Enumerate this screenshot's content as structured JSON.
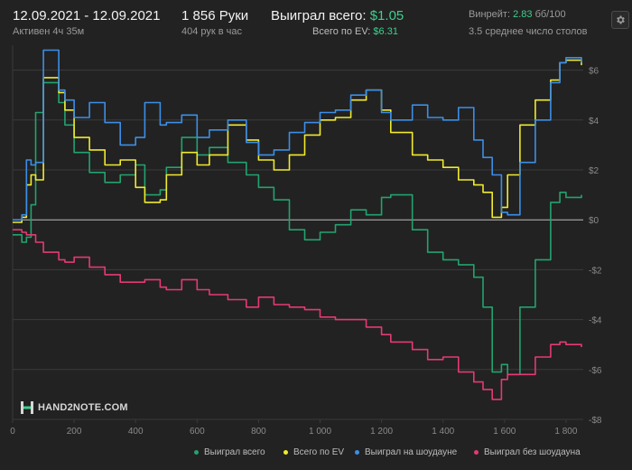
{
  "header": {
    "date_range": "12.09.2021 - 12.09.2021",
    "active": "Активен 4ч 35м",
    "hands": "1 856 Руки",
    "hands_per_hour": "404 рук в час",
    "won_total_label": "Выиграл всего:",
    "won_total_value": "$1.05",
    "ev_label": "Всего по EV:",
    "ev_value": "$6.31",
    "winrate_label": "Винрейт:",
    "winrate_value": "2.83",
    "winrate_unit": "бб/100",
    "avg_tables": "3.5 среднее число столов"
  },
  "settings_icon": "gear-icon",
  "logo": {
    "icon": "hand2note-logo-icon",
    "text": "HAND2NOTE.COM"
  },
  "colors": {
    "background": "#222222",
    "grid": "#3b3b3b",
    "zero_line": "#bdbdbd",
    "won_total": "#22a36f",
    "ev": "#f0ea2e",
    "showdown": "#3d8ee6",
    "non_showdown": "#e43a74",
    "accent": "#3ecf8e"
  },
  "chart_data": {
    "type": "line",
    "xlabel": "",
    "ylabel": "",
    "xlim": [
      0,
      1856
    ],
    "ylim": [
      -8,
      7
    ],
    "x_ticks": [
      0,
      200,
      400,
      600,
      800,
      1000,
      1200,
      1400,
      1600,
      1800
    ],
    "x_tick_labels": [
      "0",
      "200",
      "400",
      "600",
      "800",
      "1 000",
      "1 200",
      "1 400",
      "1 600",
      "1 800"
    ],
    "y_ticks": [
      6,
      4,
      2,
      0,
      -2,
      -4,
      -6,
      -8
    ],
    "y_tick_labels": [
      "$6",
      "$4",
      "$2",
      "$0",
      "-$2",
      "-$4",
      "-$6",
      "-$8"
    ],
    "grid": true,
    "legend_position": "bottom",
    "series": [
      {
        "name": "Выиграл всего",
        "color": "#22a36f",
        "x": [
          0,
          30,
          45,
          60,
          75,
          100,
          150,
          170,
          200,
          250,
          300,
          350,
          400,
          430,
          480,
          500,
          550,
          600,
          640,
          700,
          760,
          800,
          850,
          900,
          950,
          1000,
          1050,
          1100,
          1150,
          1200,
          1230,
          1300,
          1350,
          1400,
          1450,
          1500,
          1530,
          1560,
          1590,
          1610,
          1650,
          1700,
          1750,
          1780,
          1800,
          1850
        ],
        "y": [
          -0.6,
          -0.9,
          -0.7,
          0.6,
          4.3,
          5.5,
          4.7,
          3.8,
          2.7,
          1.9,
          1.5,
          1.8,
          2.2,
          1.0,
          1.2,
          2.1,
          3.3,
          2.6,
          2.9,
          2.3,
          1.8,
          1.3,
          0.8,
          -0.4,
          -0.8,
          -0.5,
          -0.2,
          0.4,
          0.2,
          0.9,
          1.0,
          -0.4,
          -1.3,
          -1.6,
          -1.8,
          -2.3,
          -3.5,
          -6.1,
          -5.8,
          -6.2,
          -3.5,
          -1.6,
          0.7,
          1.1,
          0.9,
          1.0
        ]
      },
      {
        "name": "Всего по EV",
        "color": "#f0ea2e",
        "x": [
          0,
          30,
          45,
          60,
          75,
          100,
          150,
          170,
          200,
          250,
          300,
          350,
          400,
          430,
          480,
          500,
          550,
          600,
          640,
          700,
          760,
          800,
          850,
          900,
          950,
          1000,
          1050,
          1100,
          1150,
          1200,
          1230,
          1300,
          1350,
          1400,
          1450,
          1500,
          1530,
          1560,
          1590,
          1610,
          1650,
          1700,
          1750,
          1780,
          1800,
          1850
        ],
        "y": [
          -0.1,
          0.1,
          1.4,
          1.8,
          1.6,
          5.7,
          5.1,
          4.4,
          3.3,
          2.8,
          2.2,
          2.4,
          1.3,
          0.7,
          0.8,
          1.8,
          2.7,
          2.2,
          2.6,
          3.8,
          3.2,
          2.4,
          2.0,
          2.6,
          3.4,
          4.0,
          4.1,
          4.8,
          5.2,
          4.4,
          3.5,
          2.6,
          2.4,
          2.1,
          1.6,
          1.4,
          1.1,
          0.1,
          0.5,
          1.8,
          3.8,
          4.8,
          5.6,
          6.3,
          6.4,
          6.2
        ]
      },
      {
        "name": "Выиграл на шоудауне",
        "color": "#3d8ee6",
        "x": [
          0,
          30,
          45,
          60,
          75,
          100,
          150,
          170,
          200,
          250,
          300,
          350,
          400,
          430,
          480,
          500,
          550,
          600,
          640,
          700,
          760,
          800,
          850,
          900,
          950,
          1000,
          1050,
          1100,
          1150,
          1200,
          1230,
          1300,
          1350,
          1400,
          1450,
          1500,
          1530,
          1560,
          1590,
          1610,
          1650,
          1700,
          1750,
          1780,
          1800,
          1850
        ],
        "y": [
          0.0,
          0.2,
          2.4,
          2.2,
          2.3,
          6.8,
          5.2,
          4.8,
          4.1,
          4.7,
          3.9,
          3.0,
          3.3,
          4.7,
          3.8,
          3.9,
          4.2,
          3.3,
          3.6,
          4.0,
          3.1,
          2.6,
          2.8,
          3.5,
          3.9,
          4.3,
          4.4,
          5.0,
          5.2,
          4.3,
          4.0,
          4.6,
          4.1,
          4.0,
          4.5,
          3.2,
          2.5,
          1.8,
          0.3,
          0.2,
          2.3,
          4.0,
          5.5,
          6.3,
          6.5,
          6.3
        ]
      },
      {
        "name": "Выиграл без шоудауна",
        "color": "#e43a74",
        "x": [
          0,
          30,
          45,
          60,
          75,
          100,
          150,
          170,
          200,
          250,
          300,
          350,
          400,
          430,
          480,
          500,
          550,
          600,
          640,
          700,
          760,
          800,
          850,
          900,
          950,
          1000,
          1050,
          1100,
          1150,
          1200,
          1230,
          1300,
          1350,
          1400,
          1450,
          1500,
          1530,
          1560,
          1590,
          1610,
          1650,
          1700,
          1750,
          1780,
          1800,
          1850
        ],
        "y": [
          -0.4,
          -0.5,
          -0.6,
          -0.6,
          -0.9,
          -1.3,
          -1.6,
          -1.7,
          -1.5,
          -1.9,
          -2.2,
          -2.5,
          -2.5,
          -2.4,
          -2.7,
          -2.8,
          -2.4,
          -2.8,
          -3.0,
          -3.2,
          -3.5,
          -3.1,
          -3.4,
          -3.5,
          -3.6,
          -3.9,
          -4.0,
          -4.0,
          -4.3,
          -4.6,
          -4.9,
          -5.2,
          -5.6,
          -5.5,
          -6.1,
          -6.5,
          -6.8,
          -7.2,
          -6.4,
          -6.2,
          -6.2,
          -5.5,
          -5.0,
          -4.9,
          -5.0,
          -5.1
        ]
      }
    ]
  }
}
